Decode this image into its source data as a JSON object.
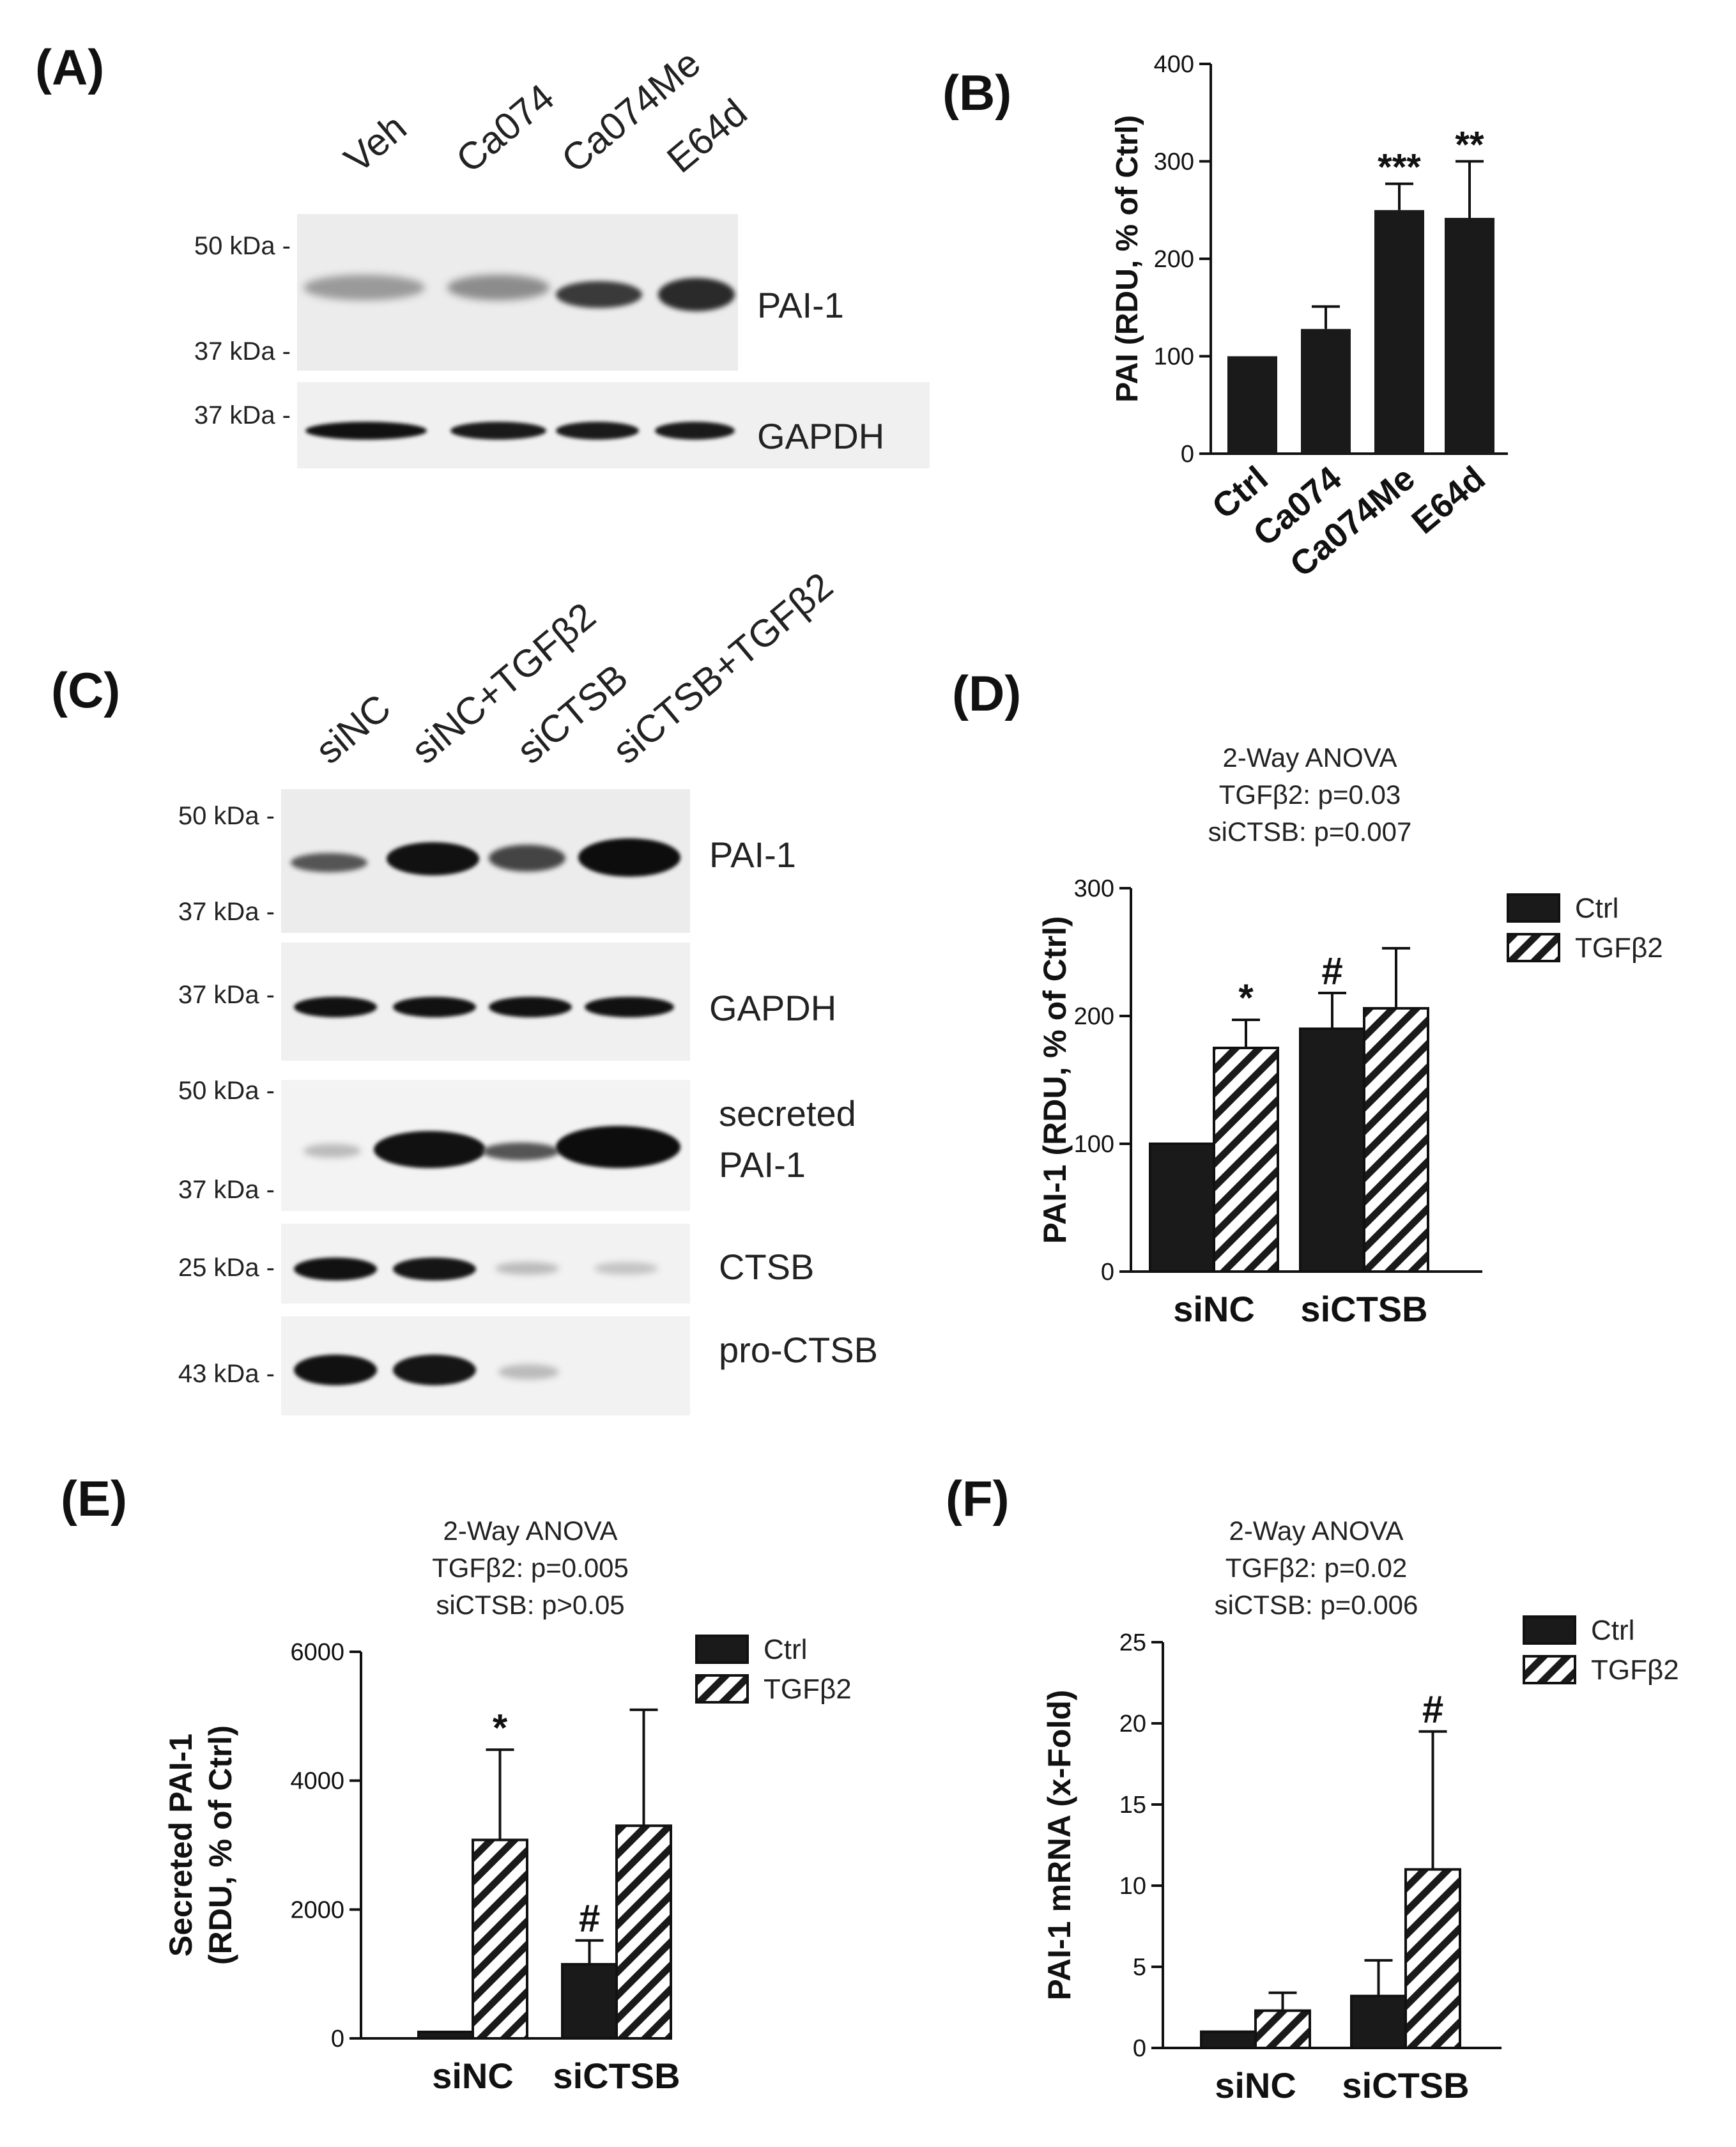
{
  "panels": {
    "A": {
      "label": "(A)",
      "lanes": [
        "Veh",
        "Ca074",
        "Ca074Me",
        "E64d"
      ],
      "blots": [
        {
          "protein": "PAI-1",
          "markers": [
            "50 kDa -",
            "37 kDa -"
          ]
        },
        {
          "protein": "GAPDH",
          "markers": [
            "37 kDa -"
          ]
        }
      ]
    },
    "B": {
      "label": "(B)"
    },
    "C": {
      "label": "(C)",
      "lanes": [
        "siNC",
        "siNC+TGFβ2",
        "siCTSB",
        "siCTSB+TGFβ2"
      ],
      "blots": [
        {
          "protein": "PAI-1",
          "markers": [
            "50 kDa -",
            "37 kDa -"
          ]
        },
        {
          "protein": "GAPDH",
          "markers": [
            "37 kDa -"
          ]
        },
        {
          "protein": "secreted",
          "protein2": "PAI-1",
          "markers": [
            "50 kDa -",
            "37 kDa -"
          ]
        },
        {
          "protein": "CTSB",
          "markers": [
            "25 kDa -"
          ]
        },
        {
          "protein": "pro-CTSB",
          "markers": [
            "43 kDa -"
          ]
        }
      ]
    },
    "D": {
      "label": "(D)"
    },
    "E": {
      "label": "(E)"
    },
    "F": {
      "label": "(F)"
    }
  },
  "chart_data": [
    {
      "panel": "B",
      "type": "bar",
      "categories": [
        "Ctrl",
        "Ca074",
        "Ca074Me",
        "E64d"
      ],
      "values": [
        100,
        128,
        250,
        242
      ],
      "errors": [
        0,
        23,
        27,
        58
      ],
      "significance": [
        "",
        "",
        "***",
        "**"
      ],
      "ylabel": "PAI (RDU, % of Ctrl)",
      "ylim": [
        0,
        400
      ],
      "yticks": [
        "0",
        "100",
        "200",
        "300",
        "400"
      ],
      "color": "#1a1a1a"
    },
    {
      "panel": "D",
      "type": "bar",
      "annotation": [
        "2-Way ANOVA",
        "TGFβ2: p=0.03",
        "siCTSB: p=0.007"
      ],
      "categories": [
        "siNC",
        "siCTSB"
      ],
      "series": [
        {
          "name": "Ctrl",
          "values": [
            100,
            190
          ],
          "errors": [
            0,
            28
          ],
          "significance": [
            "",
            "#"
          ],
          "fill": "solid"
        },
        {
          "name": "TGFβ2",
          "values": [
            175,
            206
          ],
          "errors": [
            22,
            47
          ],
          "significance": [
            "*",
            ""
          ],
          "fill": "hatched"
        }
      ],
      "ylabel": "PAI-1 (RDU, % of Ctrl)",
      "ylim": [
        0,
        300
      ],
      "yticks": [
        "0",
        "100",
        "200",
        "300"
      ],
      "legend": "top-right"
    },
    {
      "panel": "E",
      "type": "bar",
      "annotation": [
        "2-Way ANOVA",
        "TGFβ2: p=0.005",
        "siCTSB: p>0.05"
      ],
      "categories": [
        "siNC",
        "siCTSB"
      ],
      "series": [
        {
          "name": "Ctrl",
          "values": [
            100,
            1150
          ],
          "errors": [
            0,
            370
          ],
          "significance": [
            "",
            "#"
          ],
          "fill": "solid"
        },
        {
          "name": "TGFβ2",
          "values": [
            3080,
            3300
          ],
          "errors": [
            1400,
            1800
          ],
          "significance": [
            "*",
            ""
          ],
          "fill": "hatched"
        }
      ],
      "ylabel": [
        "Secreted PAI-1",
        "(RDU, % of Ctrl)"
      ],
      "ylim": [
        0,
        6000
      ],
      "yticks": [
        "0",
        "2000",
        "4000",
        "6000"
      ],
      "legend": "top-right"
    },
    {
      "panel": "F",
      "type": "bar",
      "annotation": [
        "2-Way ANOVA",
        "TGFβ2: p=0.02",
        "siCTSB: p=0.006"
      ],
      "categories": [
        "siNC",
        "siCTSB"
      ],
      "series": [
        {
          "name": "Ctrl",
          "values": [
            1,
            3.2
          ],
          "errors": [
            0,
            2.2
          ],
          "significance": [
            "",
            ""
          ],
          "fill": "solid"
        },
        {
          "name": "TGFβ2",
          "values": [
            2.3,
            11
          ],
          "errors": [
            1.1,
            8.5
          ],
          "significance": [
            "",
            "#"
          ],
          "fill": "hatched"
        }
      ],
      "ylabel": "PAI-1 mRNA (x-Fold)",
      "ylim": [
        0,
        25
      ],
      "yticks": [
        "0",
        "5",
        "10",
        "15",
        "20",
        "25"
      ],
      "legend": "top-right"
    }
  ]
}
